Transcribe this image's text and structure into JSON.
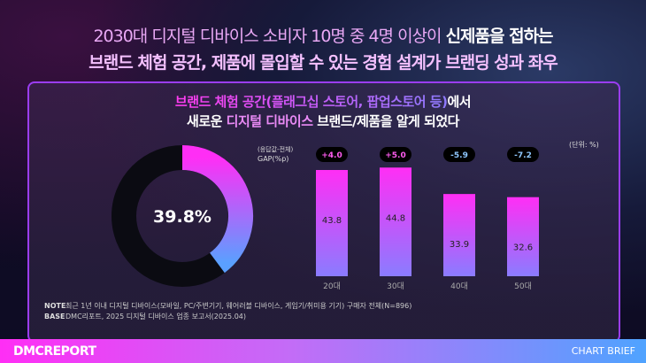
{
  "headline": {
    "line1_pre": "2030대 디지털 디바이스 소비자 10명 중 4명 이상이 ",
    "line1_bold": "신제품을 접하는",
    "line2": "브랜드 체험 공간, 제품에 몰입할 수 있는 경험 설계가 브랜딩 성과 좌우"
  },
  "subtitle": {
    "a": "브랜드 체험 공간(플래그십 스토어, 팝업스토어 등)",
    "b": "에서",
    "c": "새로운 ",
    "d": "디지털 디바이스",
    "e": " 브랜드/제품을 알게 되었다"
  },
  "unit": "(단위: %)",
  "gap_label1": "(응답값-전체)",
  "gap_label2": "GAP(%p)",
  "note_label": "NOTE",
  "note": "최근 1년 이내 디지털 디바이스(모바일, PC/주변기기, 웨어러블 디바이스, 게임기/취미용 기기) 구매자 전체(N=896)",
  "base_label": "BASE",
  "base": "DMC리포트, 2025 디지털 디바이스 업종 보고서(2025.04)",
  "footer": {
    "logo": "DMCREPORT",
    "right": "CHART BRIEF"
  },
  "colors": {
    "magenta": "#ff2ef5",
    "blue": "#6f8cff",
    "positive_gap": "#ff5cf0",
    "negative_gap": "#8fc8ff"
  },
  "chart_data": [
    {
      "type": "pie",
      "variant": "donut",
      "values": [
        39.8,
        60.2
      ],
      "center_label": "39.8%"
    },
    {
      "type": "bar",
      "categories": [
        "20대",
        "30대",
        "40대",
        "50대"
      ],
      "values": [
        43.8,
        44.8,
        33.9,
        32.6
      ],
      "gaps": [
        "+4.0",
        "+5.0",
        "-5.9",
        "-7.2"
      ],
      "data_labels": [
        "43.8",
        "44.8",
        "33.9",
        "32.6"
      ],
      "ylim": [
        0,
        50
      ]
    }
  ]
}
